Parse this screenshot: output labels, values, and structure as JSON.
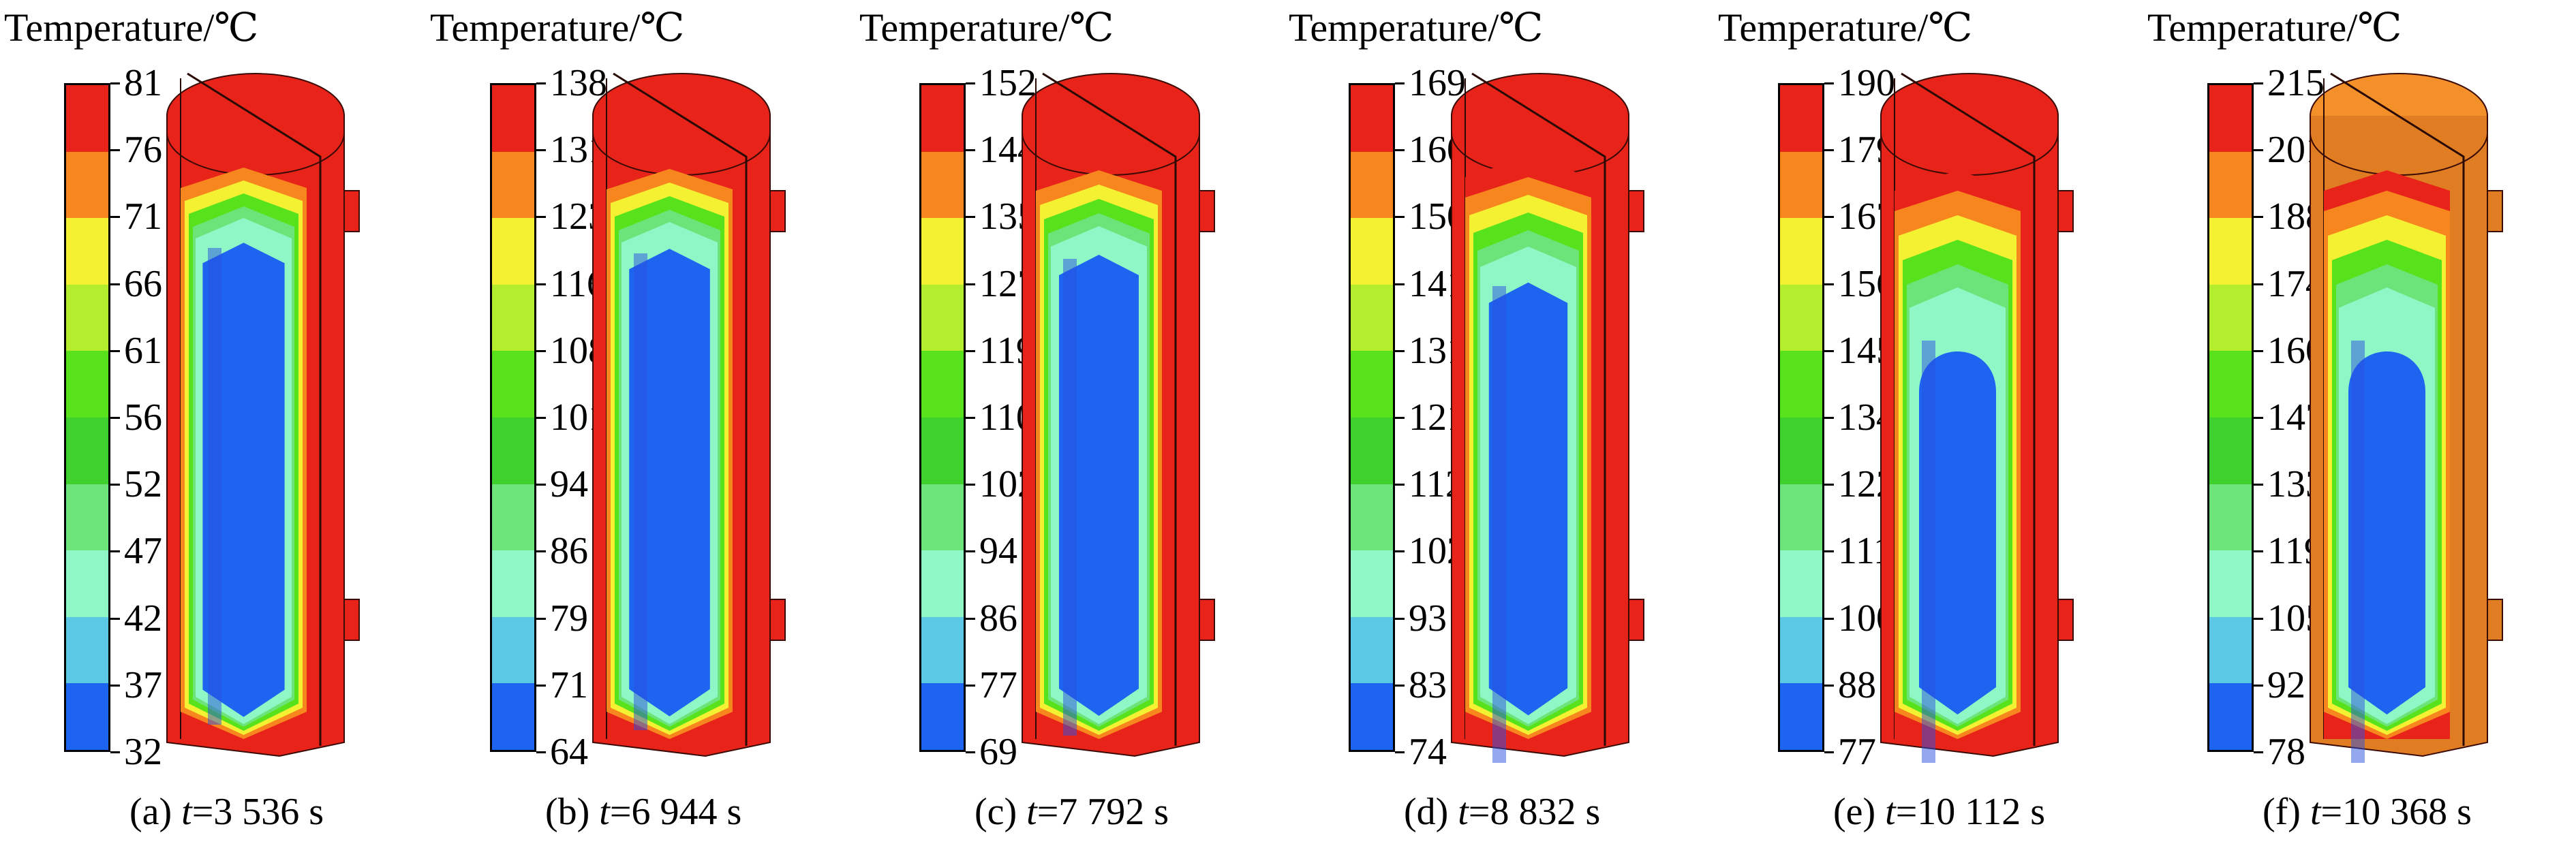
{
  "figure": {
    "colorbar_title": "Temperature/℃",
    "band_colors": [
      "#e8231a",
      "#f7861e",
      "#f4f133",
      "#b4ec2e",
      "#58e21b",
      "#3fd12e",
      "#6de47a",
      "#8ff7c6",
      "#5bc8e6",
      "#1d64f0"
    ],
    "panels": [
      {
        "id": "a",
        "colorbar_labels": [
          "81",
          "76",
          "71",
          "66",
          "61",
          "56",
          "52",
          "47",
          "42",
          "37",
          "32"
        ],
        "caption_prefix": "(a) ",
        "caption_var": "t",
        "caption_value": "=3 536 s",
        "shell_color": "#e8231a",
        "head_color": "#e8231a"
      },
      {
        "id": "b",
        "colorbar_labels": [
          "138",
          "131",
          "123",
          "116",
          "108",
          "101",
          "94",
          "86",
          "79",
          "71",
          "64"
        ],
        "caption_prefix": "(b) ",
        "caption_var": "t",
        "caption_value": "=6 944 s",
        "shell_color": "#e8231a",
        "head_color": "#e8231a"
      },
      {
        "id": "c",
        "colorbar_labels": [
          "152",
          "144",
          "135",
          "127",
          "119",
          "110",
          "102",
          "94",
          "86",
          "77",
          "69"
        ],
        "caption_prefix": "(c) ",
        "caption_var": "t",
        "caption_value": "=7 792 s",
        "shell_color": "#e8231a",
        "head_color": "#e8231a"
      },
      {
        "id": "d",
        "colorbar_labels": [
          "169",
          "160",
          "150",
          "141",
          "131",
          "121",
          "112",
          "102",
          "93",
          "83",
          "74"
        ],
        "caption_prefix": "(d) ",
        "caption_var": "t",
        "caption_value": "=8 832 s",
        "shell_color": "#e8231a",
        "head_color": "#e8231a"
      },
      {
        "id": "e",
        "colorbar_labels": [
          "190",
          "179",
          "167",
          "156",
          "145",
          "134",
          "122",
          "111",
          "100",
          "88",
          "77"
        ],
        "caption_prefix": "(e) ",
        "caption_var": "t",
        "caption_value": "=10 112 s",
        "shell_color": "#e8231a",
        "head_color": "#e8231a"
      },
      {
        "id": "f",
        "colorbar_labels": [
          "215",
          "201",
          "188",
          "174",
          "160",
          "147",
          "133",
          "119",
          "105",
          "92",
          "78"
        ],
        "caption_prefix": "(f) ",
        "caption_var": "t",
        "caption_value": "=10 368 s",
        "shell_color": "#e07d22",
        "head_color": "#f4902a"
      }
    ]
  }
}
